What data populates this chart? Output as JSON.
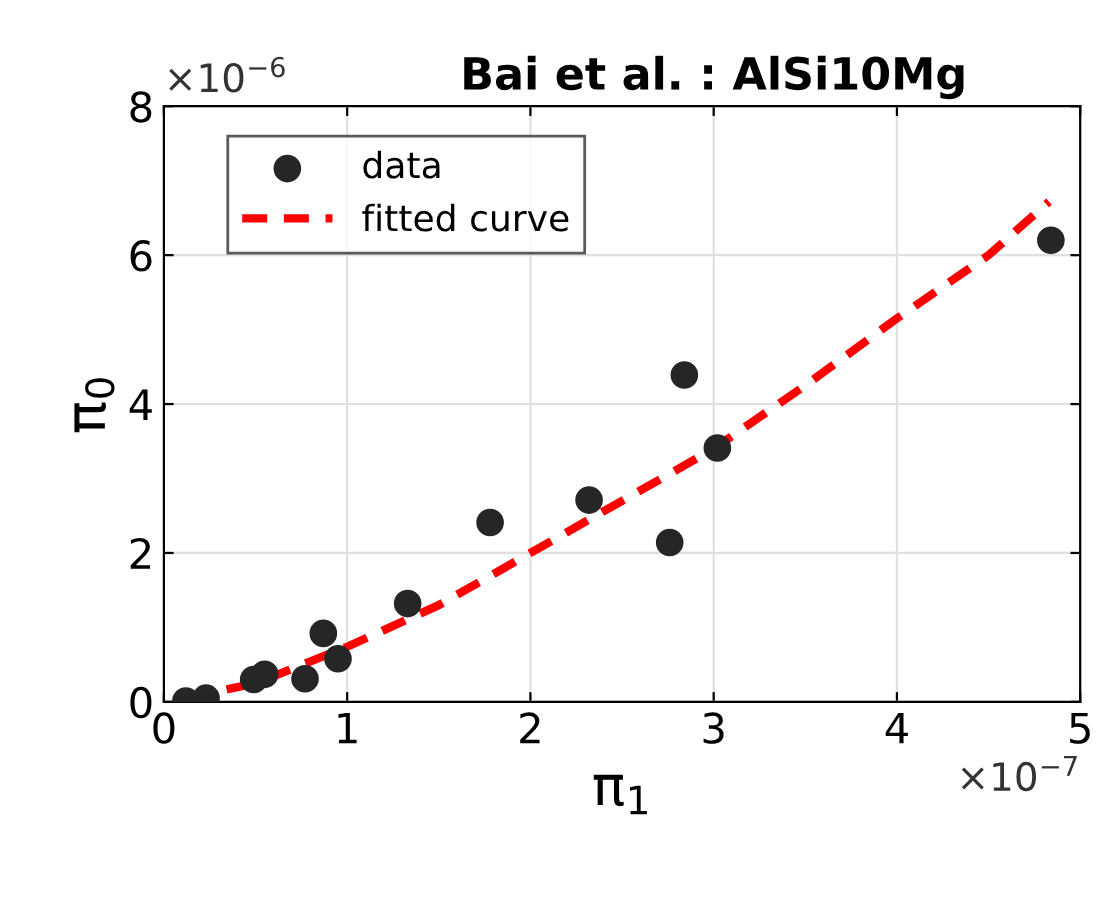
{
  "chart_data": {
    "type": "scatter",
    "title": "Bai et al. : AlSi10Mg",
    "xlabel": "π$_{1}$",
    "ylabel": "π$_{0}$",
    "annotations": [
      "×10$^{−6}$",
      "×10$^{−7}$"
    ],
    "xlim": [
      0,
      5
    ],
    "ylim": [
      0,
      8
    ],
    "xticks": [
      0,
      1,
      2,
      3,
      4,
      5
    ],
    "yticks": [
      0,
      2,
      4,
      6,
      8
    ],
    "grid": true,
    "legend": "top left",
    "series": [
      {
        "name": "data",
        "color": "#262626",
        "marker": "circle",
        "x": [
          0.12,
          0.23,
          0.49,
          0.55,
          0.77,
          0.87,
          0.95,
          1.33,
          1.78,
          2.32,
          2.76,
          2.84,
          3.02,
          4.84
        ],
        "values": [
          0.01,
          0.05,
          0.3,
          0.37,
          0.31,
          0.92,
          0.58,
          1.32,
          2.41,
          2.71,
          2.14,
          4.39,
          3.41,
          6.2
        ]
      },
      {
        "name": "fitted curve",
        "type": "line",
        "color": "#ff0000",
        "line_style": "dashed",
        "marker": "none",
        "x": [
          0.12,
          0.25,
          0.5,
          1,
          1.5,
          2,
          2.5,
          3,
          3.5,
          4,
          4.5,
          4.83
        ],
        "values": [
          0.05,
          0.12,
          0.25,
          0.74,
          1.3,
          2.0,
          2.7,
          3.4,
          4.25,
          5.15,
          6.0,
          6.72
        ]
      }
    ]
  }
}
